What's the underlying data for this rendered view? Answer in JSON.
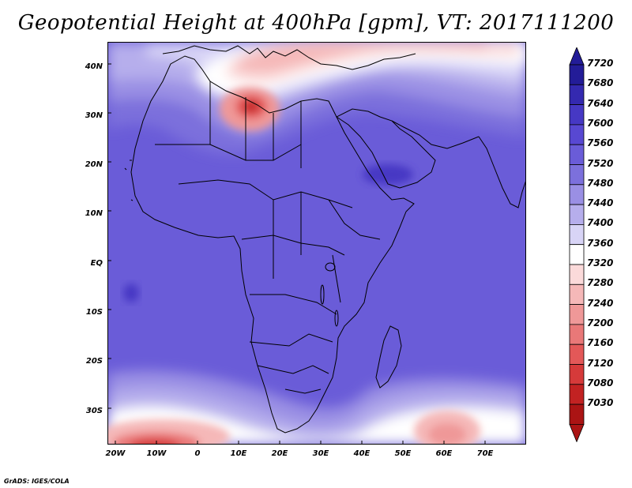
{
  "title": "Geopotential Height at 400hPa [gpm], VT: 2017111200",
  "credit": "GrADS: IGES/COLA",
  "y_axis_labels": [
    "40N",
    "30N",
    "20N",
    "10N",
    "EQ",
    "10S",
    "20S",
    "30S"
  ],
  "x_axis_labels": [
    "20W",
    "10W",
    "0",
    "10E",
    "20E",
    "30E",
    "40E",
    "50E",
    "60E",
    "70E"
  ],
  "colorbar": {
    "labels": [
      "7720",
      "7680",
      "7640",
      "7600",
      "7560",
      "7520",
      "7480",
      "7440",
      "7400",
      "7360",
      "7320",
      "7280",
      "7240",
      "7200",
      "7160",
      "7120",
      "7080",
      "7030"
    ],
    "colors": [
      "#231c98",
      "#3429b0",
      "#4638c4",
      "#5848d2",
      "#6a5cd8",
      "#7c70dc",
      "#9a8fe4",
      "#b6aeec",
      "#d8d4f6",
      "#ffffff",
      "#fbdada",
      "#f5b8b8",
      "#ef9898",
      "#e97878",
      "#e35858",
      "#d63a3a",
      "#c22222",
      "#ab1414"
    ]
  },
  "map": {
    "extent_lon": [
      -22,
      80
    ],
    "extent_lat": [
      -37,
      45
    ],
    "base_color": "#6a5cd8",
    "features": [
      {
        "name": "north-warm-band",
        "color": "#d8d4f6"
      },
      {
        "name": "mediterranean-ridge",
        "color": "#f5b8b8"
      },
      {
        "name": "libya-low",
        "color": "#e35858"
      },
      {
        "name": "south-trough",
        "color": "#ffffff"
      },
      {
        "name": "sw-low",
        "color": "#e97878"
      },
      {
        "name": "se-low",
        "color": "#ef9898"
      }
    ]
  }
}
